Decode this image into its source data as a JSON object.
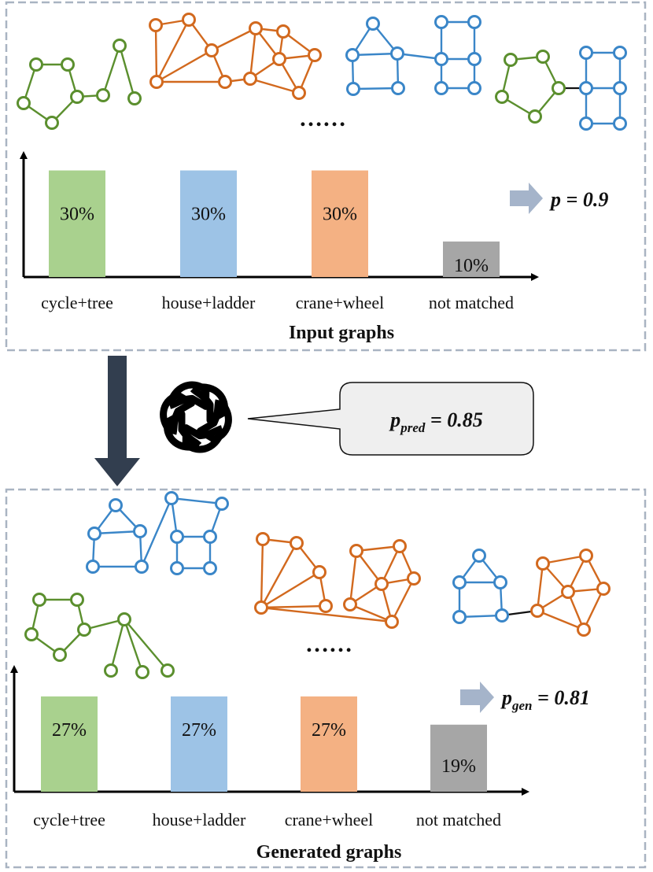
{
  "top": {
    "title": "Input graphs",
    "ellipsis": "……",
    "stat_label": "p = 0.9",
    "chart_data": {
      "type": "bar",
      "categories": [
        "cycle+tree",
        "house+ladder",
        "crane+wheel",
        "not matched"
      ],
      "values": [
        30,
        30,
        30,
        10
      ],
      "labels": [
        "30%",
        "30%",
        "30%",
        "10%"
      ],
      "colors": [
        "#a9d18e",
        "#9dc3e6",
        "#f4b183",
        "#a6a6a6"
      ],
      "ylim": [
        0,
        35
      ]
    }
  },
  "bottom": {
    "title": "Generated graphs",
    "ellipsis": "……",
    "stat_label": "p_gen = 0.81",
    "chart_data": {
      "type": "bar",
      "categories": [
        "cycle+tree",
        "house+ladder",
        "crane+wheel",
        "not matched"
      ],
      "values": [
        27,
        27,
        27,
        19
      ],
      "labels": [
        "27%",
        "27%",
        "27%",
        "19%"
      ],
      "colors": [
        "#a9d18e",
        "#9dc3e6",
        "#f4b183",
        "#a6a6a6"
      ],
      "ylim": [
        0,
        33
      ]
    }
  },
  "middle": {
    "logo": "openai-logo-icon",
    "callout_label": "p_pred = 0.85"
  },
  "colors": {
    "panel_border": "#a9b4c2",
    "down_arrow": "#323e4f",
    "side_arrow": "#a5b4ca"
  }
}
